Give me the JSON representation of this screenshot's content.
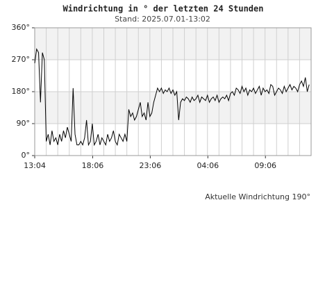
{
  "chart_data": {
    "type": "line",
    "title": "Windrichtung in ° der letzten 24 Stunden",
    "subtitle": "Stand: 2025.07.01-13:02",
    "annotation": "Aktuelle Windrichtung 190°",
    "color": "#000000",
    "x": [
      "13:04",
      "13:14",
      "13:24",
      "13:34",
      "13:44",
      "13:54",
      "14:04",
      "14:14",
      "14:24",
      "14:34",
      "14:44",
      "14:54",
      "15:04",
      "15:14",
      "15:24",
      "15:34",
      "15:44",
      "15:54",
      "16:04",
      "16:14",
      "16:24",
      "16:34",
      "16:44",
      "16:54",
      "17:04",
      "17:14",
      "17:24",
      "17:34",
      "17:44",
      "17:54",
      "18:04",
      "18:14",
      "18:24",
      "18:34",
      "18:44",
      "18:54",
      "19:04",
      "19:14",
      "19:24",
      "19:34",
      "19:44",
      "19:54",
      "20:04",
      "20:14",
      "20:24",
      "20:34",
      "20:44",
      "20:54",
      "21:04",
      "21:14",
      "21:24",
      "21:34",
      "21:44",
      "21:54",
      "22:04",
      "22:14",
      "22:24",
      "22:34",
      "22:44",
      "22:54",
      "23:04",
      "23:14",
      "23:24",
      "23:34",
      "23:44",
      "23:54",
      "00:04",
      "00:14",
      "00:24",
      "00:34",
      "00:44",
      "00:54",
      "01:04",
      "01:14",
      "01:24",
      "01:34",
      "01:44",
      "01:54",
      "02:04",
      "02:14",
      "02:24",
      "02:34",
      "02:44",
      "02:54",
      "03:04",
      "03:14",
      "03:24",
      "03:34",
      "03:44",
      "03:54",
      "04:04",
      "04:14",
      "04:24",
      "04:34",
      "04:44",
      "04:54",
      "05:04",
      "05:14",
      "05:24",
      "05:34",
      "05:44",
      "05:54",
      "06:04",
      "06:14",
      "06:24",
      "06:34",
      "06:44",
      "06:54",
      "07:04",
      "07:14",
      "07:24",
      "07:34",
      "07:44",
      "07:54",
      "08:04",
      "08:14",
      "08:24",
      "08:34",
      "08:44",
      "08:54",
      "09:04",
      "09:14",
      "09:24",
      "09:34",
      "09:44",
      "09:54",
      "10:04",
      "10:14",
      "10:24",
      "10:34",
      "10:44",
      "10:54",
      "11:04",
      "11:14",
      "11:24",
      "11:34",
      "11:44",
      "11:54",
      "12:04",
      "12:14",
      "12:24",
      "12:34",
      "12:44",
      "12:54"
    ],
    "values": [
      260,
      300,
      290,
      150,
      290,
      270,
      40,
      60,
      30,
      70,
      40,
      50,
      30,
      60,
      40,
      70,
      50,
      80,
      60,
      40,
      190,
      60,
      30,
      30,
      40,
      30,
      50,
      100,
      30,
      40,
      90,
      30,
      40,
      60,
      30,
      50,
      40,
      30,
      60,
      40,
      50,
      70,
      40,
      30,
      60,
      50,
      40,
      60,
      40,
      130,
      110,
      120,
      100,
      110,
      130,
      150,
      110,
      120,
      100,
      150,
      110,
      120,
      150,
      170,
      190,
      180,
      190,
      175,
      185,
      180,
      190,
      175,
      185,
      170,
      180,
      100,
      150,
      160,
      155,
      165,
      160,
      150,
      165,
      155,
      160,
      170,
      150,
      165,
      160,
      155,
      170,
      150,
      160,
      165,
      155,
      170,
      150,
      160,
      165,
      160,
      170,
      155,
      175,
      180,
      170,
      190,
      185,
      175,
      195,
      180,
      190,
      170,
      185,
      180,
      190,
      175,
      185,
      195,
      170,
      190,
      180,
      185,
      175,
      200,
      195,
      170,
      180,
      190,
      185,
      175,
      195,
      180,
      190,
      200,
      185,
      195,
      190,
      180,
      200,
      210,
      195,
      220,
      180,
      200
    ],
    "xlim": [
      "13:04",
      "13:04"
    ],
    "xticks": [
      "13:04",
      "18:06",
      "23:06",
      "04:06",
      "09:06"
    ],
    "ylim": [
      0,
      360
    ],
    "yticks": [
      {
        "value": 0,
        "label": "0°"
      },
      {
        "value": 90,
        "label": "90°"
      },
      {
        "value": 180,
        "label": "180°"
      },
      {
        "value": 270,
        "label": "270°"
      },
      {
        "value": 360,
        "label": "360°"
      }
    ]
  }
}
